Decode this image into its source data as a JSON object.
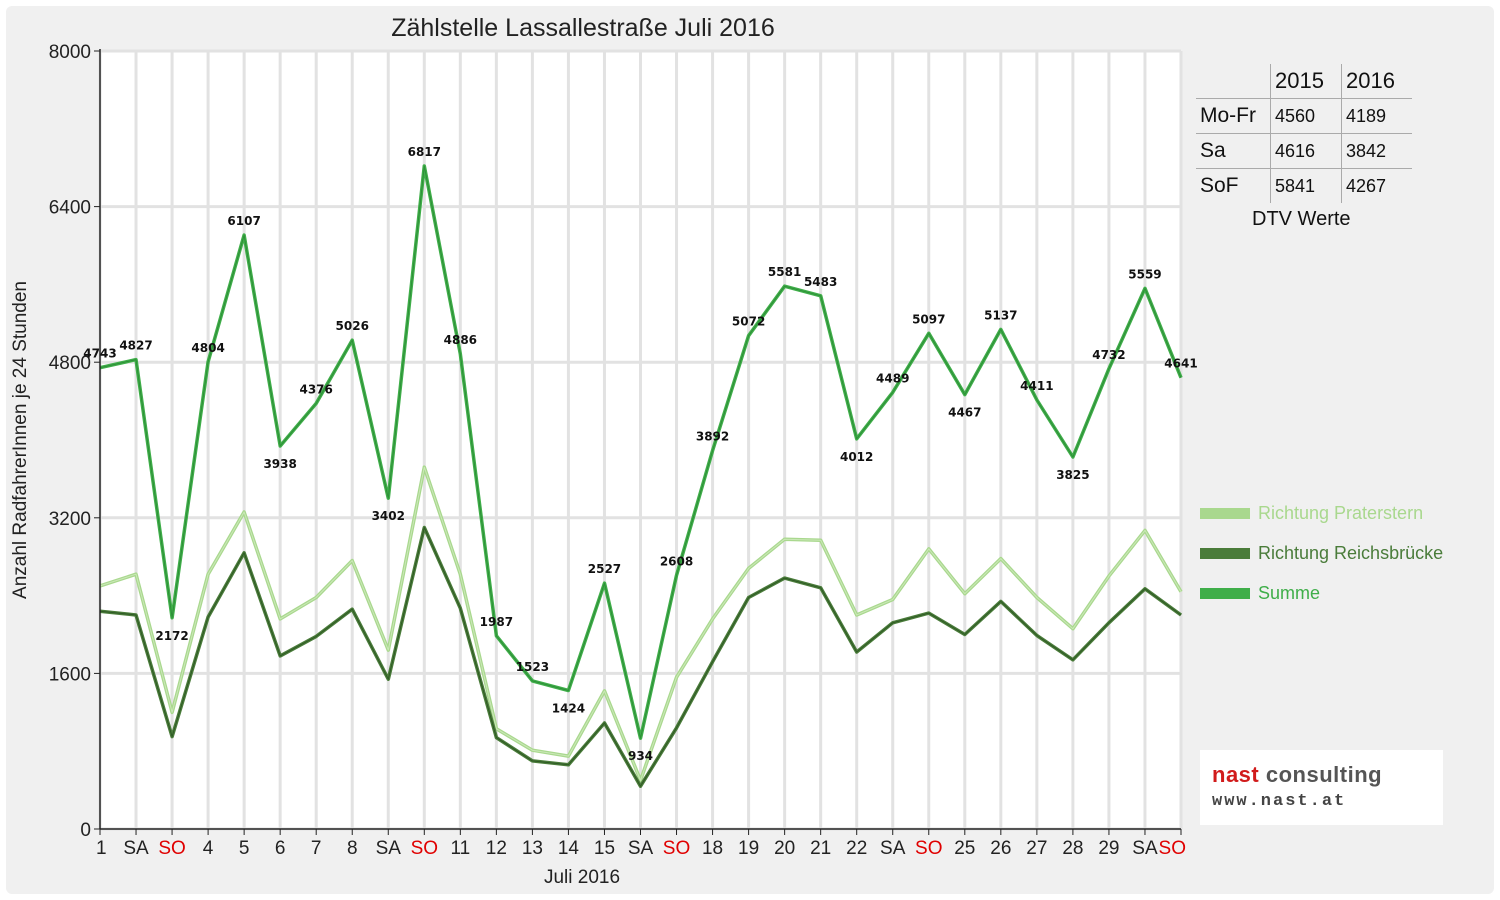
{
  "chart_data": {
    "type": "line",
    "title": "Zählstelle Lassallestraße Juli 2016",
    "xlabel": "Juli 2016",
    "ylabel": "Anzahl RadfahrerInnen je 24 Stunden",
    "ylim": [
      0,
      8000
    ],
    "yticks": [
      0,
      1600,
      3200,
      4800,
      6400,
      8000
    ],
    "grid": true,
    "legend_position": "right",
    "categories": [
      "1",
      "SA",
      "SO",
      "4",
      "5",
      "6",
      "7",
      "8",
      "SA",
      "SO",
      "11",
      "12",
      "13",
      "14",
      "15",
      "SA",
      "SO",
      "18",
      "19",
      "20",
      "21",
      "22",
      "SA",
      "SO",
      "25",
      "26",
      "27",
      "28",
      "29",
      "SA",
      "SO"
    ],
    "red_categories": [
      2,
      9,
      16,
      23,
      30
    ],
    "series": [
      {
        "name": "Richtung Praterstern",
        "color": "#a9d88e",
        "values": [
          2500,
          2620,
          1200,
          2620,
          3260,
          2160,
          2380,
          2760,
          1840,
          3720,
          2620,
          1030,
          810,
          750,
          1420,
          500,
          1560,
          2160,
          2680,
          2980,
          2970,
          2200,
          2360,
          2880,
          2420,
          2780,
          2380,
          2060,
          2600,
          3070,
          2440
        ]
      },
      {
        "name": "Richtung Reichsbrücke",
        "color": "#4a7c3a",
        "values": [
          2240,
          2200,
          950,
          2180,
          2840,
          1780,
          1980,
          2260,
          1540,
          3100,
          2270,
          940,
          700,
          660,
          1090,
          440,
          1040,
          1720,
          2380,
          2580,
          2480,
          1820,
          2120,
          2220,
          2000,
          2340,
          1990,
          1740,
          2120,
          2470,
          2200
        ]
      },
      {
        "name": "Summe",
        "color": "#3fae49",
        "values": [
          4743,
          4827,
          2172,
          4804,
          6107,
          3938,
          4376,
          5026,
          3402,
          6817,
          4886,
          1987,
          1523,
          1424,
          2527,
          934,
          2608,
          3892,
          5072,
          5581,
          5483,
          4012,
          4489,
          5097,
          4467,
          5137,
          4411,
          3825,
          4732,
          5559,
          4641
        ]
      }
    ]
  },
  "dtv": {
    "caption": "DTV Werte",
    "headers": [
      "",
      "2015",
      "2016"
    ],
    "rows": [
      {
        "label": "Mo-Fr",
        "v2015": "4560",
        "v2016": "4189"
      },
      {
        "label": "Sa",
        "v2015": "4616",
        "v2016": "3842"
      },
      {
        "label": "SoF",
        "v2015": "5841",
        "v2016": "4267"
      }
    ]
  },
  "logo": {
    "name_part1": "nast",
    "name_part2": "consulting",
    "url": "www.nast.at",
    "color_red": "#d11b1b",
    "color_grey": "#555555"
  }
}
